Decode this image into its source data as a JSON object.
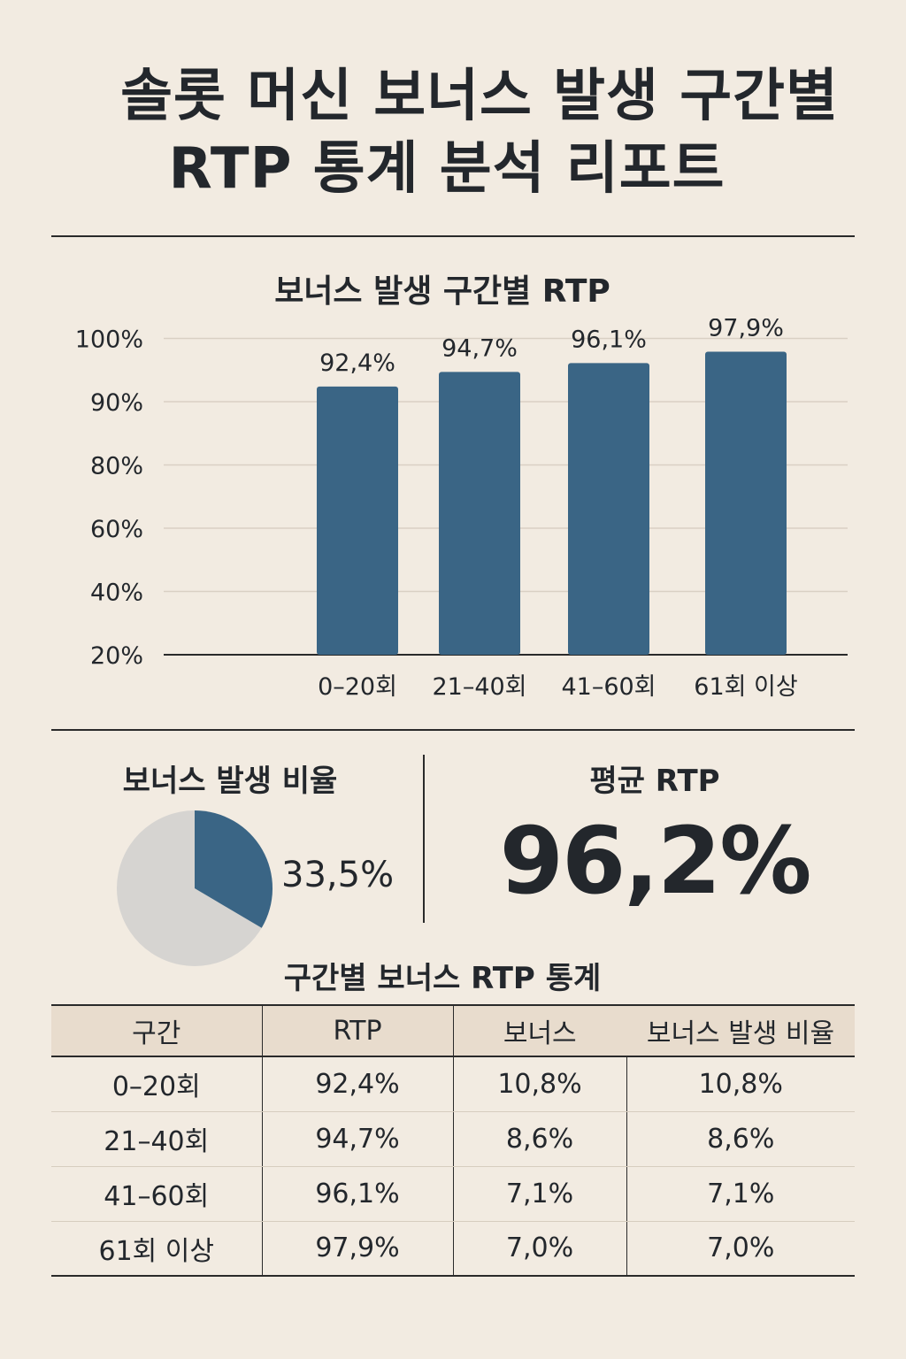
{
  "title": {
    "line1": "솔롯 머신 보너스 발생 구간별",
    "line2": "RTP 통계 분석 리포트"
  },
  "chart_title": "보너스 발생 구간별 RTP",
  "chart_data": {
    "type": "bar",
    "title": "보너스 발생 구간별 RTP",
    "categories": [
      "0–20회",
      "21–40회",
      "41–60회",
      "61회 이상"
    ],
    "values": [
      92.4,
      94.7,
      96.1,
      97.9
    ],
    "data_labels": [
      "92,4%",
      "94,7%",
      "96,1%",
      "97,9%"
    ],
    "y_tick_labels": [
      "20%",
      "40%",
      "60%",
      "80%",
      "90%",
      "100%"
    ],
    "bar_color": "#3a6585",
    "grid": true
  },
  "pie": {
    "title": "보너스 발생 비율",
    "percent_label": "33,5%",
    "percent": 33.5,
    "filled_color": "#3a6585",
    "rest_color": "#d6d4d1"
  },
  "average": {
    "label": "평균 RTP",
    "value": "96,2%"
  },
  "table": {
    "title": "구간별 보너스 RTP 통계",
    "headers": [
      "구간",
      "RTP",
      "보너스",
      "보너스 발생 비율"
    ],
    "rows": [
      [
        "0–20회",
        "92,4%",
        "10,8%",
        "10,8%"
      ],
      [
        "21–40회",
        "94,7%",
        "8,6%",
        "8,6%"
      ],
      [
        "41–60회",
        "96,1%",
        "7,1%",
        "7,1%"
      ],
      [
        "61회 이상",
        "97,9%",
        "7,0%",
        "7,0%"
      ]
    ]
  }
}
